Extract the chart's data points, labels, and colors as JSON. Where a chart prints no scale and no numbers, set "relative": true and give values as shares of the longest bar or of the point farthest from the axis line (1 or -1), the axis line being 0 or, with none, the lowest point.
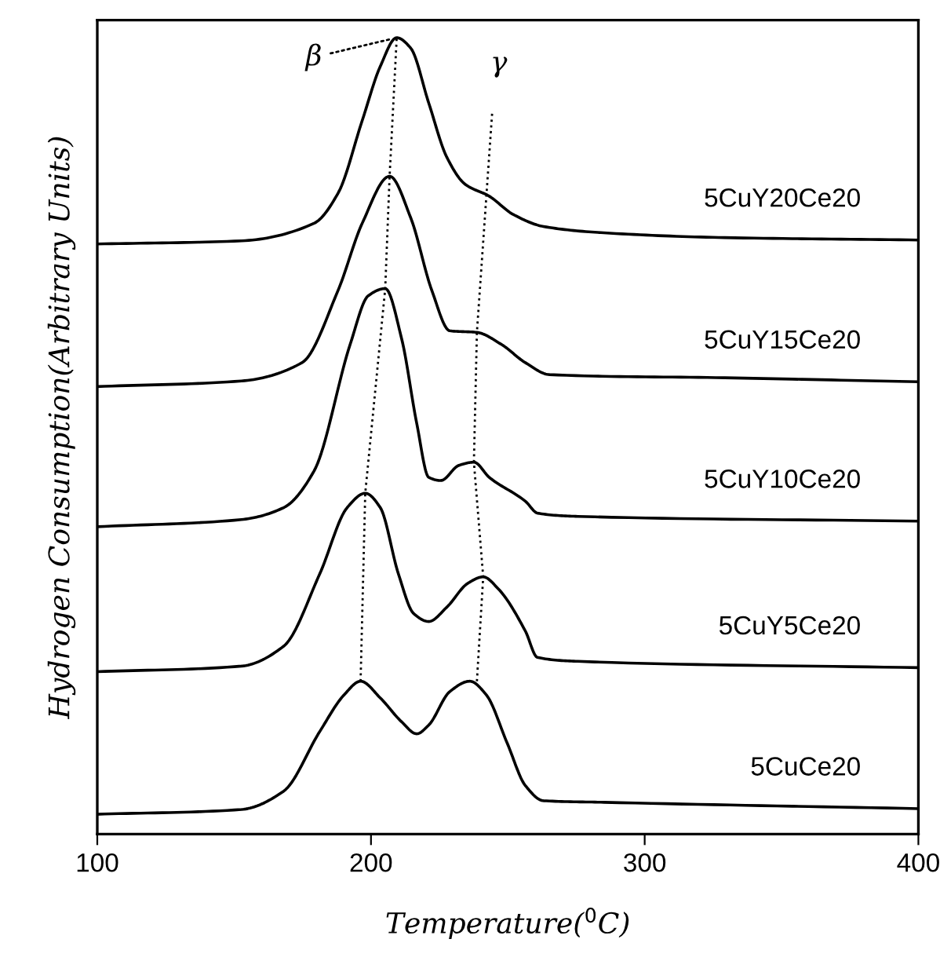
{
  "chart_data": {
    "type": "line",
    "relative": true,
    "xlabel": "Temperature($^{0}$C)",
    "ylabel": "Hydrogen Consumption(Arbitrary Units)",
    "xlim": [
      100,
      400
    ],
    "xticks": [
      100,
      200,
      300,
      400
    ],
    "grid": false,
    "legend": false,
    "marker": "none",
    "line_style": "solid",
    "annotations": [
      {
        "text": "β",
        "x": 209.4,
        "y": 1.0
      },
      {
        "text": "γ",
        "x": 244.3,
        "y": 0.907
      }
    ],
    "series": [
      {
        "name": "5CuY20Ce20",
        "color": "#000000",
        "x": [
          100,
          152.7,
          179.2,
          188.0,
          196.8,
          203.4,
          209.4,
          214.5,
          221.1,
          227.7,
          234.4,
          243.2,
          252.0,
          263.0,
          285.1,
          329.2,
          400
        ],
        "values": [
          0.741,
          0.745,
          0.767,
          0.805,
          0.896,
          0.964,
          1.0,
          0.987,
          0.918,
          0.85,
          0.816,
          0.801,
          0.778,
          0.763,
          0.755,
          0.749,
          0.746
        ]
      },
      {
        "name": "5CuY15Ce20",
        "color": "#000000",
        "x": [
          100,
          152.7,
          174.8,
          188.0,
          196.8,
          206.8,
          214.5,
          222.2,
          228.8,
          238.7,
          247.6,
          256.4,
          265.2,
          329.2,
          400
        ],
        "values": [
          0.562,
          0.569,
          0.592,
          0.683,
          0.767,
          0.826,
          0.774,
          0.683,
          0.632,
          0.63,
          0.615,
          0.592,
          0.577,
          0.573,
          0.568
        ]
      },
      {
        "name": "5CuY10Ce20",
        "color": "#000000",
        "x": [
          100,
          152.7,
          168.1,
          179.2,
          192.4,
          199.0,
          205.2,
          211.2,
          216.7,
          221.1,
          225.5,
          232.1,
          237.6,
          243.2,
          256.4,
          260.9,
          275.5,
          400
        ],
        "values": [
          0.386,
          0.395,
          0.41,
          0.456,
          0.615,
          0.676,
          0.685,
          0.622,
          0.516,
          0.448,
          0.444,
          0.463,
          0.467,
          0.448,
          0.418,
          0.403,
          0.399,
          0.393
        ]
      },
      {
        "name": "5CuY5Ce20",
        "color": "#000000",
        "x": [
          100,
          152.7,
          168.1,
          181.3,
          191.3,
          197.9,
          203.4,
          210.0,
          215.6,
          221.1,
          227.7,
          235.4,
          241.0,
          246.5,
          256.4,
          260.8,
          275.5,
          400
        ],
        "values": [
          0.204,
          0.211,
          0.236,
          0.327,
          0.41,
          0.428,
          0.41,
          0.327,
          0.277,
          0.267,
          0.285,
          0.315,
          0.323,
          0.308,
          0.255,
          0.222,
          0.217,
          0.209
        ]
      },
      {
        "name": "5CuCe20",
        "color": "#000000",
        "x": [
          100,
          152.7,
          168.1,
          181.3,
          190.2,
          196.2,
          203.4,
          211.2,
          216.7,
          221.1,
          228.8,
          236.1,
          242.1,
          249.8,
          256.4,
          263.0,
          285.1,
          400
        ],
        "values": [
          0.025,
          0.031,
          0.054,
          0.129,
          0.175,
          0.192,
          0.171,
          0.141,
          0.126,
          0.137,
          0.179,
          0.192,
          0.175,
          0.114,
          0.061,
          0.042,
          0.04,
          0.032
        ]
      },
      {
        "color": "#000000",
        "line_style": "dotted",
        "x": [
          196.2,
          197.9,
          205.2,
          206.8,
          209.4
        ],
        "values": [
          0.192,
          0.428,
          0.685,
          0.826,
          1.0
        ]
      },
      {
        "color": "#000000",
        "line_style": "dotted",
        "x": [
          238.7,
          241.0,
          237.6,
          238.7,
          244.3
        ],
        "values": [
          0.192,
          0.323,
          0.467,
          0.63,
          0.907
        ]
      }
    ]
  }
}
